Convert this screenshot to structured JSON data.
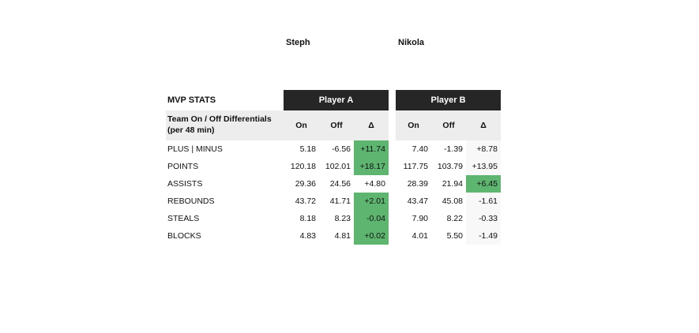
{
  "players": {
    "a_name": "Steph",
    "b_name": "Nikola"
  },
  "table": {
    "title": "MVP STATS",
    "subtitle_line1": "Team On / Off Differentials",
    "subtitle_line2": "(per 48 min)",
    "player_a_header": "Player A",
    "player_b_header": "Player B",
    "col_on": "On",
    "col_off": "Off",
    "col_delta": "Δ",
    "rows": [
      {
        "label": "PLUS | MINUS",
        "a_on": "5.18",
        "a_off": "-6.56",
        "a_delta": "+11.74",
        "b_on": "7.40",
        "b_off": "-1.39",
        "b_delta": "+8.78"
      },
      {
        "label": "POINTS",
        "a_on": "120.18",
        "a_off": "102.01",
        "a_delta": "+18.17",
        "b_on": "117.75",
        "b_off": "103.79",
        "b_delta": "+13.95"
      },
      {
        "label": "ASSISTS",
        "a_on": "29.36",
        "a_off": "24.56",
        "a_delta": "+4.80",
        "b_on": "28.39",
        "b_off": "21.94",
        "b_delta": "+6.45"
      },
      {
        "label": "REBOUNDS",
        "a_on": "43.72",
        "a_off": "41.71",
        "a_delta": "+2.01",
        "b_on": "43.47",
        "b_off": "45.08",
        "b_delta": "-1.61"
      },
      {
        "label": "STEALS",
        "a_on": "8.18",
        "a_off": "8.23",
        "a_delta": "-0.04",
        "b_on": "7.90",
        "b_off": "8.22",
        "b_delta": "-0.33"
      },
      {
        "label": "BLOCKS",
        "a_on": "4.83",
        "a_off": "4.81",
        "a_delta": "+0.02",
        "b_on": "4.01",
        "b_off": "5.50",
        "b_delta": "-1.49"
      }
    ]
  },
  "colors": {
    "header_dark": "#262626",
    "highlight_green": "#5db56f",
    "subheader_gray": "#ededed"
  }
}
